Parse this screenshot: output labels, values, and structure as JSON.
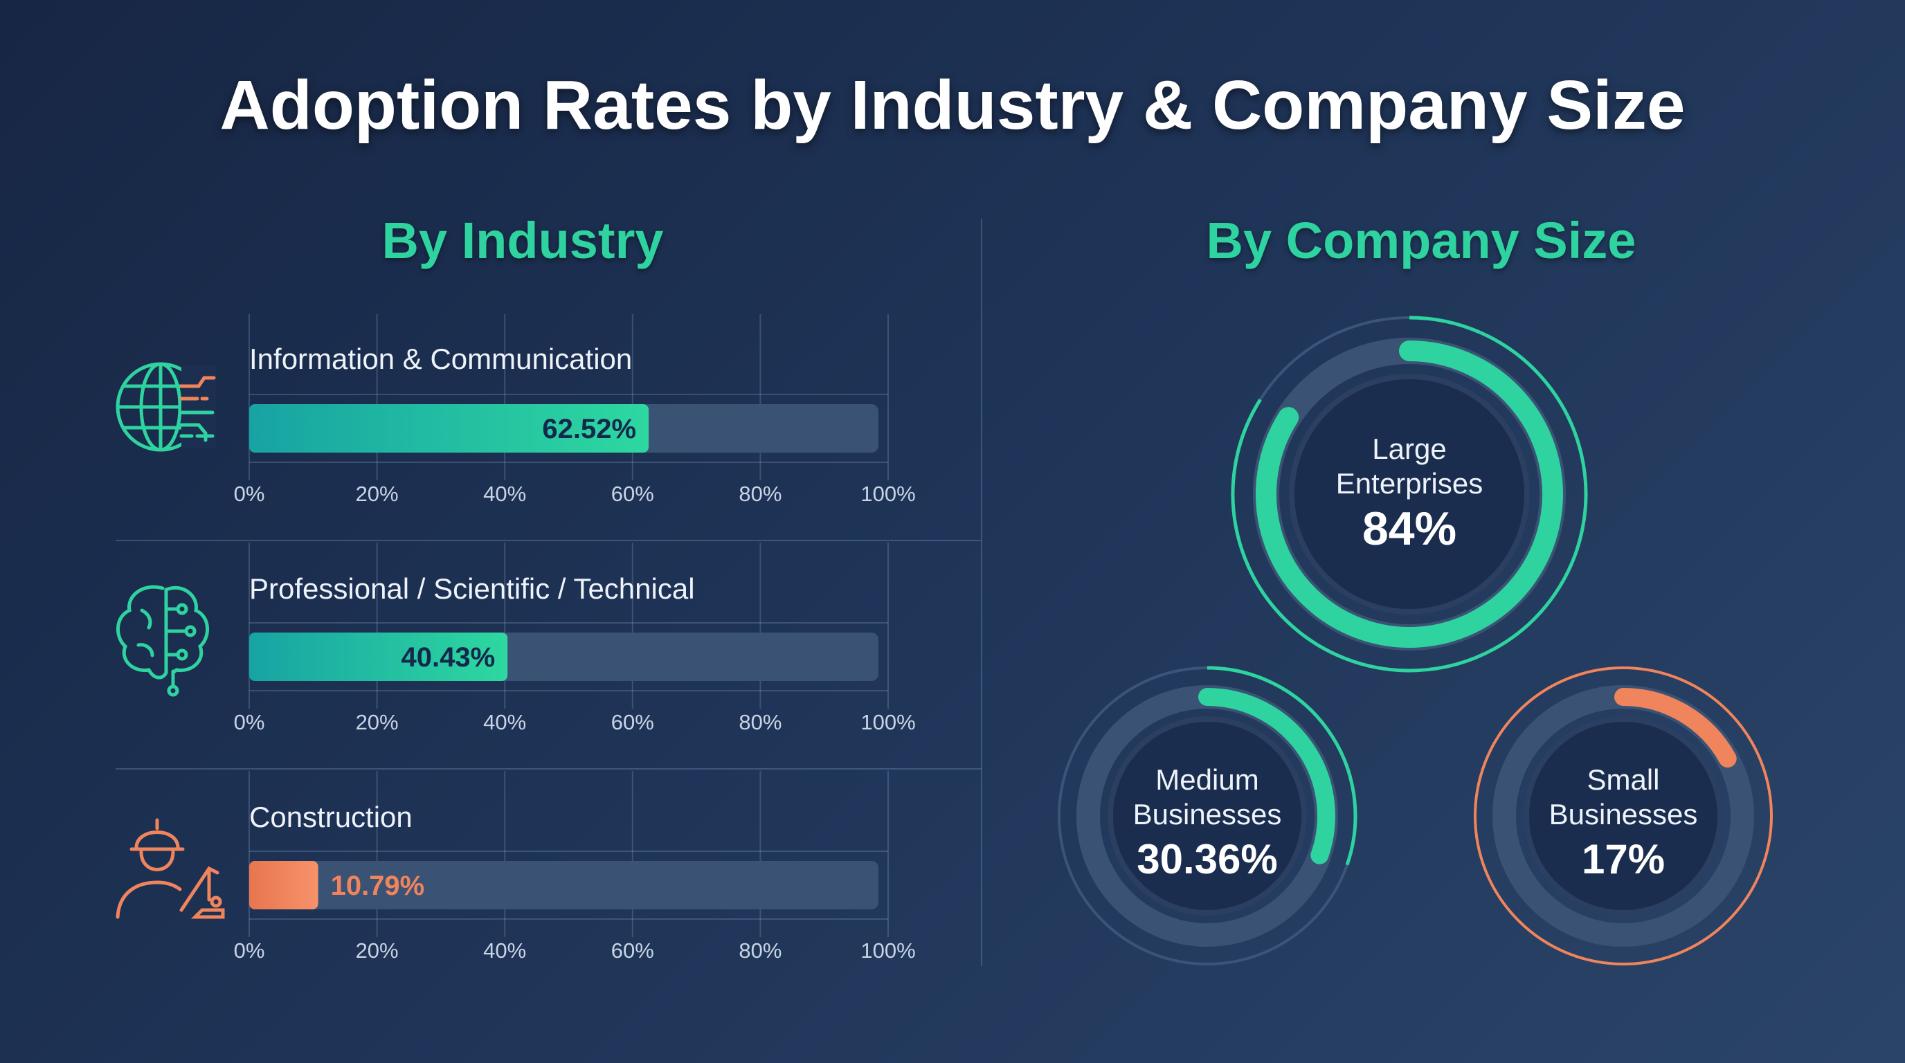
{
  "title": "Adoption Rates by Industry & Company Size",
  "colors": {
    "teal": "#2ed3a0",
    "teal_dark": "#17a3a3",
    "orange": "#f0845c",
    "track": "#3a5274",
    "background": "#1e3356"
  },
  "chart_data": [
    {
      "type": "bar",
      "orientation": "horizontal",
      "title": "By Industry",
      "categories": [
        "Information & Communication",
        "Professional / Scientific / Technical",
        "Construction"
      ],
      "values": [
        62.52,
        40.43,
        10.79
      ],
      "value_labels": [
        "62.52%",
        "40.43%",
        "10.79%"
      ],
      "icons": [
        "globe-circuit-icon",
        "brain-circuit-icon",
        "construction-worker-icon"
      ],
      "bar_colors": [
        "#2ed3a0",
        "#2ed3a0",
        "#f0845c"
      ],
      "xlim": [
        0,
        100
      ],
      "xticks": [
        "0%",
        "20%",
        "40%",
        "60%",
        "80%",
        "100%"
      ],
      "grid": true
    },
    {
      "type": "donut",
      "title": "By Company Size",
      "items": [
        {
          "label_line1": "Large",
          "label_line2": "Enterprises",
          "value": 84,
          "value_label": "84%",
          "color": "#2ed3a0"
        },
        {
          "label_line1": "Medium",
          "label_line2": "Businesses",
          "value": 30.36,
          "value_label": "30.36%",
          "color": "#2ed3a0"
        },
        {
          "label_line1": "Small",
          "label_line2": "Businesses",
          "value": 17,
          "value_label": "17%",
          "color": "#f0845c"
        }
      ]
    }
  ]
}
